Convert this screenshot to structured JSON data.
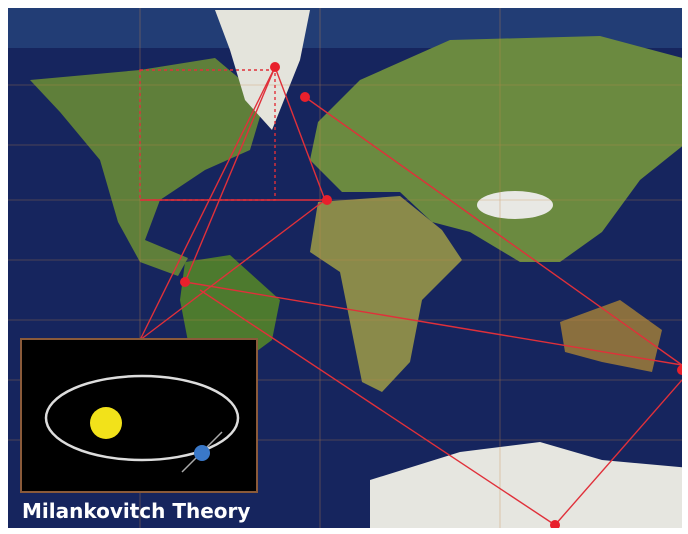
{
  "caption": "Milankovitch Theory"
}
